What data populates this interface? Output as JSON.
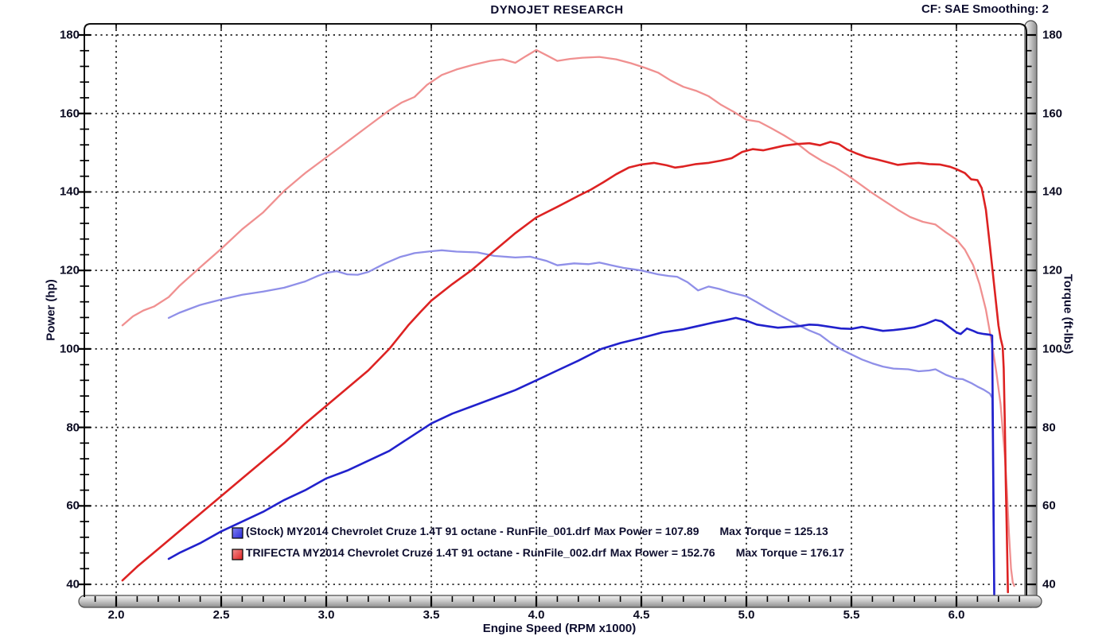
{
  "header": {
    "title": "DYNOJET RESEARCH",
    "correction_info": "CF: SAE  Smoothing: 2"
  },
  "chart_data": {
    "type": "line",
    "title": "DYNOJET RESEARCH",
    "xlabel": "Engine Speed (RPM x1000)",
    "ylabel_left": "Power (hp)",
    "ylabel_right": "Torque (ft-lbs)",
    "xlim": [
      1.85,
      6.33
    ],
    "ylim": [
      36,
      182.8
    ],
    "grid": "dotted-major",
    "x_ticks": [
      2.0,
      2.5,
      3.0,
      3.5,
      4.0,
      4.5,
      5.0,
      5.5,
      6.0
    ],
    "x_tick_labels": [
      "2.0",
      "2.5",
      "3.0",
      "3.5",
      "4.0",
      "4.5",
      "5.0",
      "5.5",
      "6.0"
    ],
    "x_minor_step": 0.1,
    "y_ticks": [
      180,
      160,
      140,
      120,
      100,
      80,
      60,
      40
    ],
    "y_tick_labels": [
      "180",
      "160",
      "140",
      "120",
      "100",
      "80",
      "60",
      "40"
    ],
    "y_minor_step": 4,
    "colors": {
      "stock_power": "#2121cc",
      "stock_torque": "#8f8fe8",
      "trifecta_power": "#dd2222",
      "trifecta_torque": "#f09090",
      "grid": "#1b1b1b",
      "frame": "#111111",
      "text": "#0d0d2e"
    },
    "series": [
      {
        "name": "trifecta-torque",
        "axis": "right",
        "color": "#f09090",
        "width": 2.3,
        "points": [
          [
            2.03,
            106
          ],
          [
            2.08,
            108.3
          ],
          [
            2.13,
            109.8
          ],
          [
            2.18,
            110.8
          ],
          [
            2.25,
            113.2
          ],
          [
            2.3,
            116
          ],
          [
            2.4,
            120.8
          ],
          [
            2.5,
            125.5
          ],
          [
            2.6,
            130.5
          ],
          [
            2.7,
            134.8
          ],
          [
            2.8,
            140.3
          ],
          [
            2.9,
            144.8
          ],
          [
            3.0,
            148.8
          ],
          [
            3.1,
            152.8
          ],
          [
            3.2,
            156.8
          ],
          [
            3.3,
            160.8
          ],
          [
            3.36,
            162.8
          ],
          [
            3.42,
            164.2
          ],
          [
            3.48,
            167.3
          ],
          [
            3.55,
            169.8
          ],
          [
            3.62,
            171.2
          ],
          [
            3.7,
            172.4
          ],
          [
            3.78,
            173.4
          ],
          [
            3.84,
            173.8
          ],
          [
            3.9,
            172.9
          ],
          [
            3.95,
            174.6
          ],
          [
            4.0,
            176.17
          ],
          [
            4.05,
            174.8
          ],
          [
            4.1,
            173.4
          ],
          [
            4.16,
            173.9
          ],
          [
            4.22,
            174.2
          ],
          [
            4.3,
            174.4
          ],
          [
            4.38,
            173.8
          ],
          [
            4.45,
            172.8
          ],
          [
            4.52,
            171.6
          ],
          [
            4.58,
            170.4
          ],
          [
            4.64,
            168.4
          ],
          [
            4.7,
            166.8
          ],
          [
            4.76,
            165.8
          ],
          [
            4.82,
            164.4
          ],
          [
            4.88,
            162.2
          ],
          [
            4.94,
            160.4
          ],
          [
            5.0,
            158.4
          ],
          [
            5.06,
            157.9
          ],
          [
            5.12,
            156.2
          ],
          [
            5.18,
            154.4
          ],
          [
            5.24,
            152.4
          ],
          [
            5.3,
            149.9
          ],
          [
            5.36,
            147.9
          ],
          [
            5.42,
            146.3
          ],
          [
            5.48,
            144.3
          ],
          [
            5.54,
            142.0
          ],
          [
            5.6,
            139.7
          ],
          [
            5.66,
            137.6
          ],
          [
            5.72,
            135.5
          ],
          [
            5.78,
            133.6
          ],
          [
            5.84,
            132.4
          ],
          [
            5.9,
            131.7
          ],
          [
            5.95,
            129.7
          ],
          [
            6.0,
            127.9
          ],
          [
            6.04,
            125.3
          ],
          [
            6.08,
            121.3
          ],
          [
            6.11,
            116.5
          ],
          [
            6.14,
            110
          ],
          [
            6.17,
            101
          ],
          [
            6.19,
            94
          ],
          [
            6.21,
            86
          ],
          [
            6.23,
            73
          ],
          [
            6.24,
            64
          ],
          [
            6.25,
            53
          ],
          [
            6.26,
            44
          ],
          [
            6.268,
            40.5
          ],
          [
            6.275,
            39.6
          ]
        ]
      },
      {
        "name": "stock-torque",
        "axis": "right",
        "color": "#8f8fe8",
        "width": 2.3,
        "points": [
          [
            2.25,
            107.9
          ],
          [
            2.3,
            109.2
          ],
          [
            2.35,
            110.2
          ],
          [
            2.4,
            111.2
          ],
          [
            2.5,
            112.6
          ],
          [
            2.6,
            113.8
          ],
          [
            2.7,
            114.6
          ],
          [
            2.8,
            115.6
          ],
          [
            2.9,
            117.2
          ],
          [
            2.96,
            118.6
          ],
          [
            3.0,
            119.4
          ],
          [
            3.05,
            119.8
          ],
          [
            3.1,
            119.0
          ],
          [
            3.15,
            118.9
          ],
          [
            3.2,
            119.6
          ],
          [
            3.28,
            121.8
          ],
          [
            3.35,
            123.4
          ],
          [
            3.42,
            124.4
          ],
          [
            3.5,
            124.9
          ],
          [
            3.55,
            125.13
          ],
          [
            3.62,
            124.8
          ],
          [
            3.72,
            124.6
          ],
          [
            3.8,
            123.7
          ],
          [
            3.9,
            123.3
          ],
          [
            3.97,
            123.5
          ],
          [
            4.05,
            122.4
          ],
          [
            4.1,
            121.3
          ],
          [
            4.18,
            121.8
          ],
          [
            4.25,
            121.6
          ],
          [
            4.3,
            122.0
          ],
          [
            4.35,
            121.4
          ],
          [
            4.42,
            120.6
          ],
          [
            4.5,
            120.0
          ],
          [
            4.58,
            119.0
          ],
          [
            4.63,
            118.6
          ],
          [
            4.67,
            118.4
          ],
          [
            4.72,
            117.0
          ],
          [
            4.77,
            114.9
          ],
          [
            4.82,
            115.9
          ],
          [
            4.87,
            115.3
          ],
          [
            4.93,
            114.3
          ],
          [
            5.0,
            113.4
          ],
          [
            5.05,
            111.9
          ],
          [
            5.1,
            110.3
          ],
          [
            5.15,
            108.8
          ],
          [
            5.2,
            107.4
          ],
          [
            5.25,
            106.0
          ],
          [
            5.3,
            104.7
          ],
          [
            5.35,
            103.6
          ],
          [
            5.4,
            101.6
          ],
          [
            5.45,
            99.9
          ],
          [
            5.5,
            98.6
          ],
          [
            5.55,
            97.3
          ],
          [
            5.6,
            96.3
          ],
          [
            5.65,
            95.5
          ],
          [
            5.7,
            95.0
          ],
          [
            5.77,
            94.8
          ],
          [
            5.82,
            94.3
          ],
          [
            5.87,
            94.5
          ],
          [
            5.9,
            94.8
          ],
          [
            5.95,
            93.4
          ],
          [
            6.0,
            92.4
          ],
          [
            6.03,
            92.3
          ],
          [
            6.07,
            91.3
          ],
          [
            6.1,
            90.4
          ],
          [
            6.13,
            89.6
          ],
          [
            6.16,
            88.6
          ],
          [
            6.17,
            87.5
          ],
          [
            6.173,
            75
          ],
          [
            6.176,
            55
          ],
          [
            6.18,
            38
          ]
        ]
      },
      {
        "name": "trifecta-power",
        "axis": "left",
        "color": "#dd2222",
        "width": 2.6,
        "points": [
          [
            2.03,
            41
          ],
          [
            2.1,
            44.5
          ],
          [
            2.2,
            49
          ],
          [
            2.3,
            53.5
          ],
          [
            2.4,
            58
          ],
          [
            2.5,
            62.5
          ],
          [
            2.6,
            67
          ],
          [
            2.7,
            71.5
          ],
          [
            2.8,
            76
          ],
          [
            2.9,
            81
          ],
          [
            3.0,
            85.5
          ],
          [
            3.1,
            90
          ],
          [
            3.2,
            94.5
          ],
          [
            3.3,
            100
          ],
          [
            3.39,
            106
          ],
          [
            3.45,
            109.5
          ],
          [
            3.5,
            112.3
          ],
          [
            3.6,
            116.5
          ],
          [
            3.69,
            120
          ],
          [
            3.8,
            125
          ],
          [
            3.9,
            129.5
          ],
          [
            4.0,
            133.5
          ],
          [
            4.1,
            136.2
          ],
          [
            4.2,
            139
          ],
          [
            4.26,
            140.6
          ],
          [
            4.32,
            142.5
          ],
          [
            4.38,
            144.5
          ],
          [
            4.44,
            146.2
          ],
          [
            4.5,
            147
          ],
          [
            4.56,
            147.4
          ],
          [
            4.62,
            146.8
          ],
          [
            4.66,
            146.2
          ],
          [
            4.7,
            146.5
          ],
          [
            4.76,
            147.1
          ],
          [
            4.82,
            147.4
          ],
          [
            4.88,
            148
          ],
          [
            4.93,
            148.6
          ],
          [
            4.98,
            150.2
          ],
          [
            5.03,
            150.9
          ],
          [
            5.08,
            150.6
          ],
          [
            5.13,
            151.2
          ],
          [
            5.18,
            151.8
          ],
          [
            5.24,
            152.2
          ],
          [
            5.3,
            152.4
          ],
          [
            5.35,
            151.9
          ],
          [
            5.4,
            152.76
          ],
          [
            5.44,
            152.2
          ],
          [
            5.48,
            150.8
          ],
          [
            5.52,
            149.9
          ],
          [
            5.57,
            148.9
          ],
          [
            5.62,
            148.3
          ],
          [
            5.67,
            147.6
          ],
          [
            5.72,
            146.9
          ],
          [
            5.77,
            147.2
          ],
          [
            5.82,
            147.4
          ],
          [
            5.87,
            147.1
          ],
          [
            5.92,
            147
          ],
          [
            5.97,
            146.4
          ],
          [
            6.0,
            145.8
          ],
          [
            6.04,
            144.8
          ],
          [
            6.07,
            143.2
          ],
          [
            6.1,
            143
          ],
          [
            6.12,
            141
          ],
          [
            6.14,
            135.5
          ],
          [
            6.16,
            126
          ],
          [
            6.18,
            116
          ],
          [
            6.2,
            106
          ],
          [
            6.21,
            102.8
          ],
          [
            6.22,
            100.5
          ],
          [
            6.225,
            95
          ],
          [
            6.23,
            82
          ],
          [
            6.235,
            66
          ],
          [
            6.24,
            52
          ],
          [
            6.245,
            38
          ]
        ]
      },
      {
        "name": "stock-power",
        "axis": "left",
        "color": "#2121cc",
        "width": 2.6,
        "points": [
          [
            2.25,
            46.5
          ],
          [
            2.3,
            48
          ],
          [
            2.4,
            50.5
          ],
          [
            2.5,
            53.5
          ],
          [
            2.6,
            56
          ],
          [
            2.7,
            58.5
          ],
          [
            2.75,
            60
          ],
          [
            2.8,
            61.5
          ],
          [
            2.9,
            64
          ],
          [
            3.0,
            67
          ],
          [
            3.1,
            69
          ],
          [
            3.2,
            71.5
          ],
          [
            3.3,
            74
          ],
          [
            3.4,
            77.5
          ],
          [
            3.5,
            81
          ],
          [
            3.6,
            83.5
          ],
          [
            3.7,
            85.5
          ],
          [
            3.8,
            87.5
          ],
          [
            3.9,
            89.5
          ],
          [
            4.0,
            92
          ],
          [
            4.1,
            94.5
          ],
          [
            4.2,
            97
          ],
          [
            4.31,
            100
          ],
          [
            4.4,
            101.5
          ],
          [
            4.5,
            102.8
          ],
          [
            4.6,
            104.2
          ],
          [
            4.7,
            105
          ],
          [
            4.8,
            106.2
          ],
          [
            4.85,
            106.8
          ],
          [
            4.9,
            107.3
          ],
          [
            4.95,
            107.89
          ],
          [
            5.0,
            107.2
          ],
          [
            5.05,
            106.2
          ],
          [
            5.1,
            105.8
          ],
          [
            5.15,
            105.4
          ],
          [
            5.2,
            105.6
          ],
          [
            5.25,
            105.8
          ],
          [
            5.3,
            106.2
          ],
          [
            5.34,
            106.1
          ],
          [
            5.4,
            105.6
          ],
          [
            5.45,
            105.2
          ],
          [
            5.5,
            105.1
          ],
          [
            5.55,
            105.6
          ],
          [
            5.6,
            105.1
          ],
          [
            5.65,
            104.6
          ],
          [
            5.7,
            104.8
          ],
          [
            5.75,
            105.1
          ],
          [
            5.8,
            105.5
          ],
          [
            5.85,
            106.3
          ],
          [
            5.9,
            107.4
          ],
          [
            5.93,
            107.0
          ],
          [
            5.97,
            105.4
          ],
          [
            6.0,
            104.2
          ],
          [
            6.02,
            103.8
          ],
          [
            6.05,
            105.2
          ],
          [
            6.08,
            104.6
          ],
          [
            6.1,
            104.1
          ],
          [
            6.13,
            103.8
          ],
          [
            6.16,
            103.6
          ],
          [
            6.17,
            103.4
          ],
          [
            6.172,
            90
          ],
          [
            6.175,
            70
          ],
          [
            6.178,
            50
          ],
          [
            6.18,
            37.5
          ]
        ]
      }
    ],
    "legend_position": "bottom-center-inside",
    "legend": [
      {
        "series": "stock-power",
        "marker_color": "#2828d8",
        "marker_highlight": "#8080f0",
        "label": "(Stock) MY2014 Chevrolet Cruze 1.4T 91 octane - RunFile_001.drf",
        "max_power": "Max Power = 107.89",
        "max_torque": "Max Torque = 125.13"
      },
      {
        "series": "trifecta-power",
        "marker_color": "#e02020",
        "marker_highlight": "#f29090",
        "label": "TRIFECTA MY2014 Chevrolet Cruze 1.4T 91 octane - RunFile_002.drf",
        "max_power": "Max Power = 152.76",
        "max_torque": "Max Torque = 176.17"
      }
    ]
  }
}
